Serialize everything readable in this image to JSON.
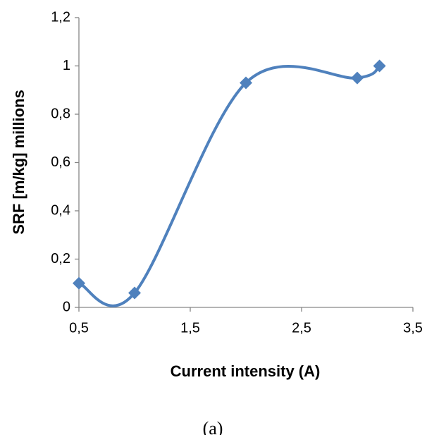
{
  "chart_data": {
    "type": "line",
    "smooth": true,
    "x_label": "Current intensity (A)",
    "y_label": "SRF [m/kg] millions",
    "caption": "(a)",
    "series": [
      {
        "color": "#4f81bd",
        "x": [
          0.5,
          1,
          2,
          3,
          3.2
        ],
        "values": [
          0.1,
          0.06,
          0.93,
          0.95,
          1
        ]
      }
    ],
    "xlim": [
      0.5,
      3.5
    ],
    "xticks": [
      {
        "value": 0.5,
        "label": "0,5"
      },
      {
        "value": 1.5,
        "label": "1,5"
      },
      {
        "value": 2.5,
        "label": "2,5"
      },
      {
        "value": 3.5,
        "label": "3,5"
      }
    ],
    "ylim": [
      0,
      1.2
    ],
    "yticks": [
      0,
      {
        "value": 0.2,
        "label": "0,2"
      },
      {
        "value": 0.4,
        "label": "0,4"
      },
      {
        "value": 0.6,
        "label": "0,6"
      },
      {
        "value": 0.8,
        "label": "0,8"
      },
      1,
      {
        "value": 1.2,
        "label": "1,2"
      }
    ]
  }
}
